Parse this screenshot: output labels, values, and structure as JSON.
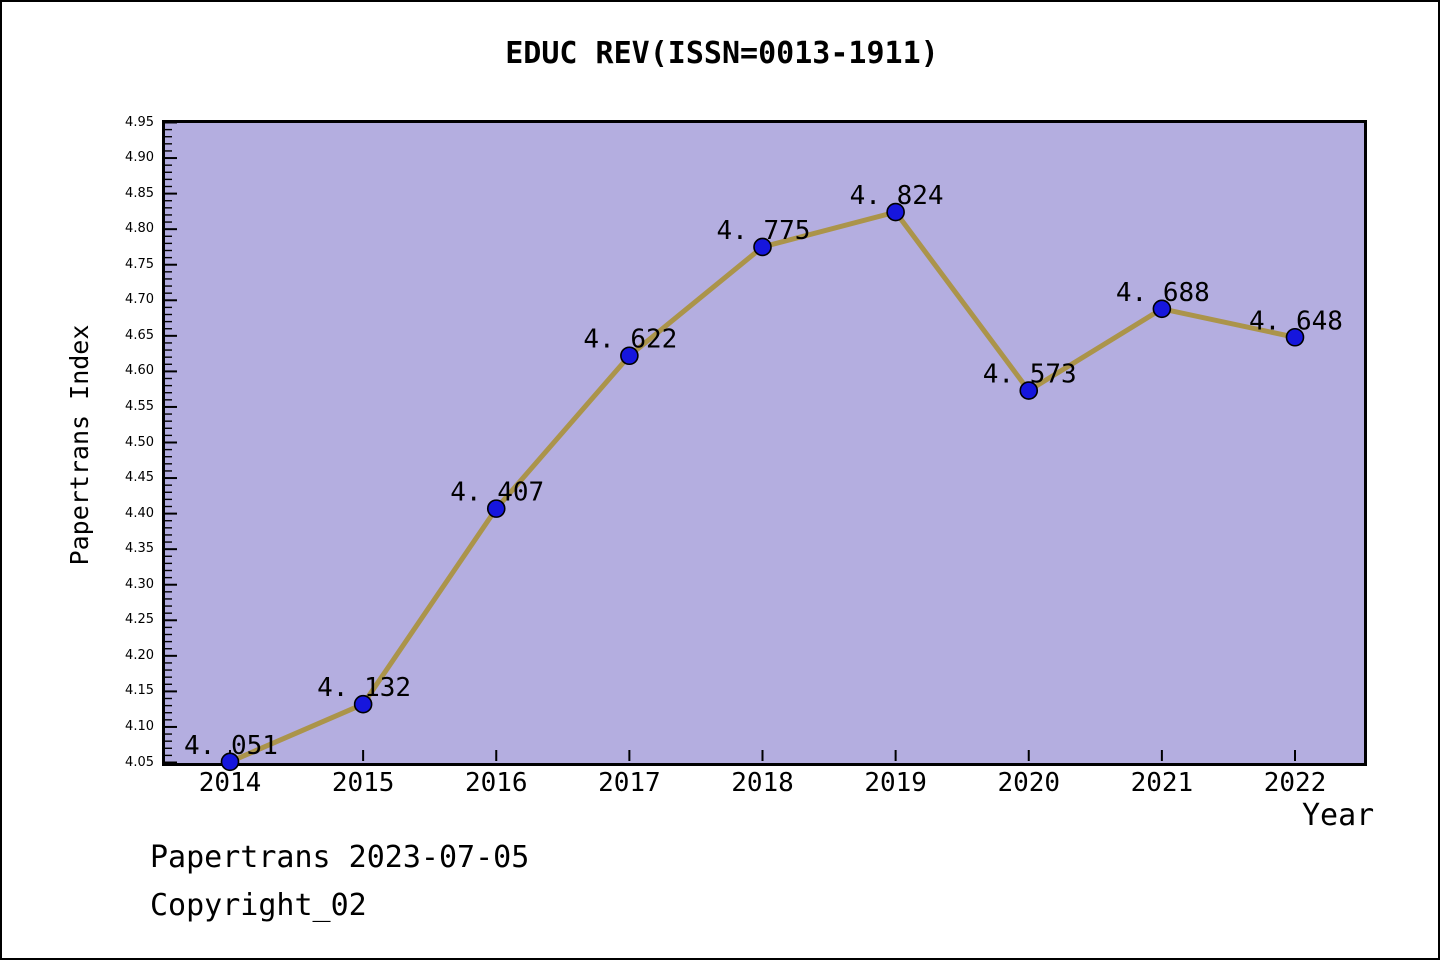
{
  "title": "EDUC REV(ISSN=0013-1911)",
  "footer": {
    "line1": "Papertrans 2023-07-05",
    "line2": "Copyright_02"
  },
  "chart_data": {
    "type": "line",
    "title": "EDUC REV(ISSN=0013-1911)",
    "xlabel": "Year",
    "ylabel": "Papertrans Index",
    "x": [
      2014,
      2015,
      2016,
      2017,
      2018,
      2019,
      2020,
      2021,
      2022
    ],
    "values": [
      4.051,
      4.132,
      4.407,
      4.622,
      4.775,
      4.824,
      4.573,
      4.688,
      4.648
    ],
    "point_labels": [
      "4. 051",
      "4. 132",
      "4. 407",
      "4. 622",
      "4. 775",
      "4. 824",
      "4. 573",
      "4. 688",
      "4. 648"
    ],
    "xticks": [
      "2014",
      "2015",
      "2016",
      "2017",
      "2018",
      "2019",
      "2020",
      "2021",
      "2022"
    ],
    "yticks": [
      "4.05",
      "4.10",
      "4.15",
      "4.20",
      "4.25",
      "4.30",
      "4.35",
      "4.40",
      "4.45",
      "4.50",
      "4.55",
      "4.60",
      "4.65",
      "4.70",
      "4.75",
      "4.80",
      "4.85",
      "4.90",
      "4.95"
    ],
    "ylim": [
      4.05,
      4.95
    ],
    "ytick_step": 0.05,
    "ytick_minor_step": 0.01,
    "grid": false,
    "legend": null,
    "colors": {
      "plot_bg": "#b4aee0",
      "line": "#ab944a",
      "marker": "#1616dd",
      "marker_edge": "#000000",
      "axis": "#000000",
      "text": "#000000"
    }
  }
}
